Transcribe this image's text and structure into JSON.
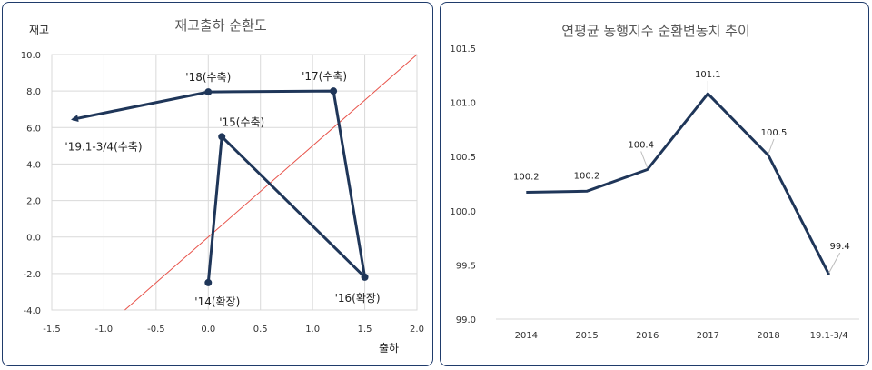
{
  "chart_data": [
    {
      "type": "scatter",
      "title": "재고출하 순환도",
      "xlabel": "출하",
      "ylabel": "재고",
      "xlim": [
        -1.5,
        2.0
      ],
      "ylim": [
        -4.0,
        10.0
      ],
      "x_ticks": [
        "-1.5",
        "-1.0",
        "-0.5",
        "0.0",
        "0.5",
        "1.0",
        "1.5",
        "2.0"
      ],
      "y_ticks": [
        "-4.0",
        "-2.0",
        "0.0",
        "2.0",
        "4.0",
        "6.0",
        "8.0",
        "10.0"
      ],
      "series": [
        {
          "points": [
            {
              "label": "'14(확장)",
              "x": 0.0,
              "y": -2.5
            },
            {
              "label": "'15(수축)",
              "x": 0.13,
              "y": 5.5
            },
            {
              "label": "'16(확장)",
              "x": 1.5,
              "y": -2.2
            },
            {
              "label": "'17(수축)",
              "x": 1.2,
              "y": 8.0
            },
            {
              "label": "'18(수축)",
              "x": 0.0,
              "y": 7.95
            },
            {
              "label": "'19.1-3/4(수축)",
              "x": -1.3,
              "y": 6.45
            }
          ]
        }
      ],
      "reference_line": {
        "slope": 5.0,
        "intercept": 0.0,
        "color": "#e8534a"
      },
      "colors": {
        "series": "#1f3659",
        "grid": "#d9d9d9"
      }
    },
    {
      "type": "line",
      "title": "연평균 동행지수 순환변동치 추이",
      "categories": [
        "2014",
        "2015",
        "2016",
        "2017",
        "2018",
        "19.1-3/4"
      ],
      "values": [
        100.2,
        100.2,
        100.4,
        101.1,
        100.5,
        99.4
      ],
      "plotted": [
        100.17,
        100.18,
        100.38,
        101.08,
        100.51,
        99.41
      ],
      "data_labels": [
        "100.2",
        "100.2",
        "100.4",
        "101.1",
        "100.5",
        "99.4"
      ],
      "ylim": [
        99.0,
        101.5
      ],
      "y_ticks": [
        "99.0",
        "99.5",
        "100.0",
        "100.5",
        "101.0",
        "101.5"
      ],
      "colors": {
        "series": "#1f3659"
      }
    }
  ]
}
